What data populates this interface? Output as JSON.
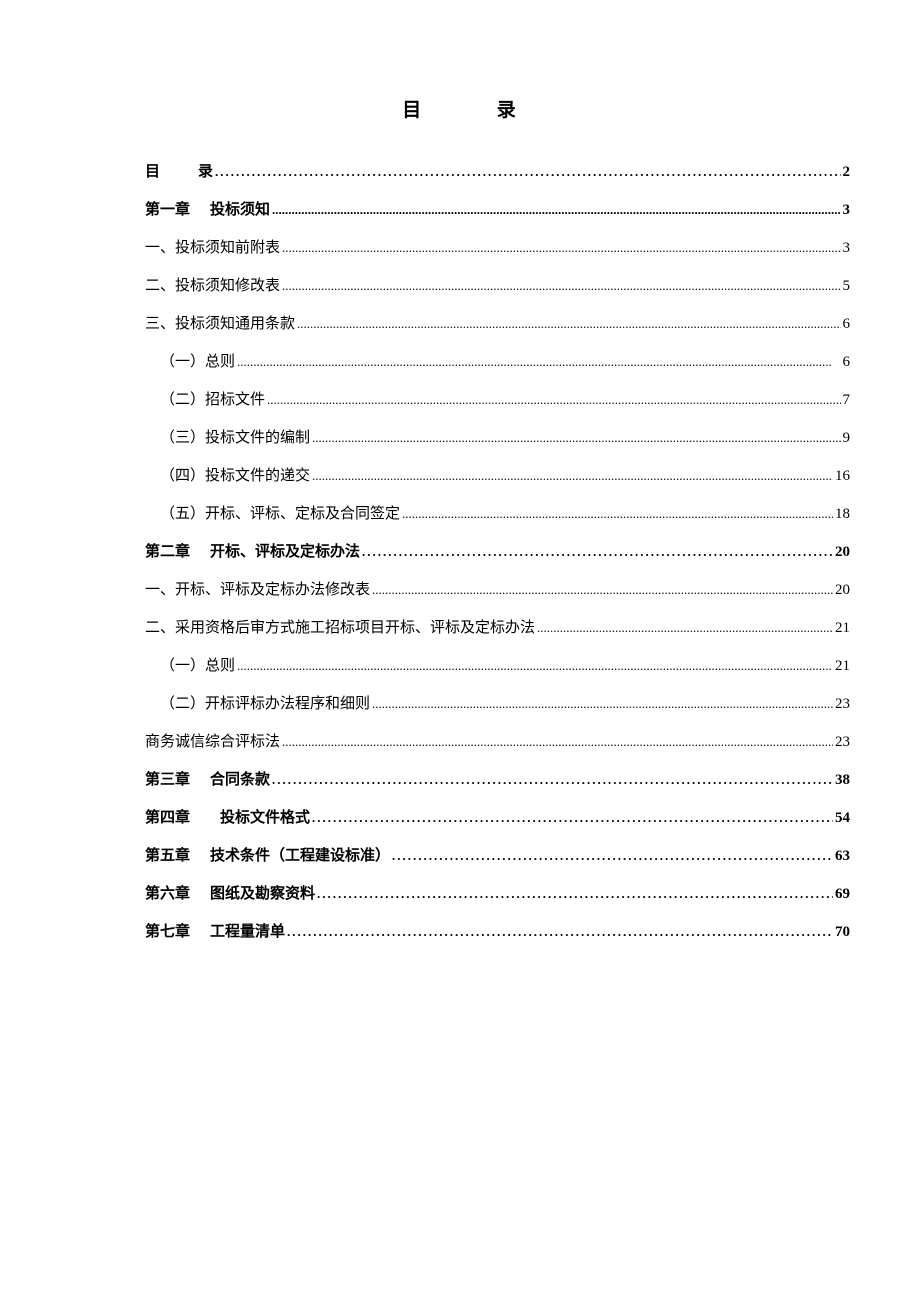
{
  "title_left": "目",
  "title_right": "录",
  "entries": [
    {
      "label_a": "目",
      "label_b": "录",
      "gap": true,
      "page": "2",
      "bold": true,
      "indent": 0,
      "dots": "sparse"
    },
    {
      "label_a": "第一章",
      "label_b": "投标须知",
      "gap_narrow": true,
      "page": "3",
      "bold": true,
      "indent": 0,
      "dots": "dense"
    },
    {
      "label_a": "一、投标须知前附表",
      "page": "3",
      "bold": false,
      "indent": 0,
      "dots": "dense"
    },
    {
      "label_a": "二、投标须知修改表",
      "page": "5",
      "bold": false,
      "indent": 0,
      "dots": "dense"
    },
    {
      "label_a": "三、投标须知通用条款",
      "page": "6",
      "bold": false,
      "indent": 0,
      "dots": "dense"
    },
    {
      "label_a": "（一）总则",
      "page": "6",
      "bold": false,
      "indent": 1,
      "dots": "dense"
    },
    {
      "label_a": "（二）招标文件",
      "page": "7",
      "bold": false,
      "indent": 1,
      "dots": "dense"
    },
    {
      "label_a": "（三）投标文件的编制",
      "page": "9",
      "bold": false,
      "indent": 1,
      "dots": "dense"
    },
    {
      "label_a": "（四）投标文件的递交",
      "page": "16",
      "bold": false,
      "indent": 1,
      "dots": "dense"
    },
    {
      "label_a": "（五）开标、评标、定标及合同签定",
      "page": "18",
      "bold": false,
      "indent": 1,
      "dots": "dense"
    },
    {
      "label_a": "第二章",
      "label_b": "开标、评标及定标办法",
      "gap_narrow": true,
      "page": "20",
      "bold": true,
      "indent": 0,
      "dots": "sparse"
    },
    {
      "label_a": "一、开标、评标及定标办法修改表",
      "page": "20",
      "bold": false,
      "indent": 0,
      "dots": "dense"
    },
    {
      "label_a": "二、采用资格后审方式施工招标项目开标、评标及定标办法",
      "page": "21",
      "bold": false,
      "indent": 0,
      "dots": "dense"
    },
    {
      "label_a": "（一）总则",
      "page": "21",
      "bold": false,
      "indent": 1,
      "dots": "dense"
    },
    {
      "label_a": "（二）开标评标办法程序和细则",
      "page": "23",
      "bold": false,
      "indent": 1,
      "dots": "dense"
    },
    {
      "label_a": "商务诚信综合评标法",
      "page": "23",
      "bold": false,
      "indent": 0,
      "dots": "dense"
    },
    {
      "label_a": "第三章",
      "label_b": "合同条款",
      "gap_narrow": true,
      "page": "38",
      "bold": true,
      "indent": 0,
      "dots": "sparse"
    },
    {
      "label_a": "第四章",
      "label_b": "投标文件格式",
      "gap_narrow": true,
      "gap_extra": true,
      "page": "54",
      "bold": true,
      "indent": 0,
      "dots": "sparse"
    },
    {
      "label_a": "第五章",
      "label_b": "技术条件（工程建设标准）",
      "gap_narrow": true,
      "page": "63",
      "bold": true,
      "indent": 0,
      "dots": "sparse"
    },
    {
      "label_a": "第六章",
      "label_b": "图纸及勘察资料",
      "gap_narrow": true,
      "page": "69",
      "bold": true,
      "indent": 0,
      "dots": "sparse"
    },
    {
      "label_a": "第七章",
      "label_b": "工程量清单",
      "gap_narrow": true,
      "page": "70",
      "bold": true,
      "indent": 0,
      "dots": "sparse"
    }
  ]
}
